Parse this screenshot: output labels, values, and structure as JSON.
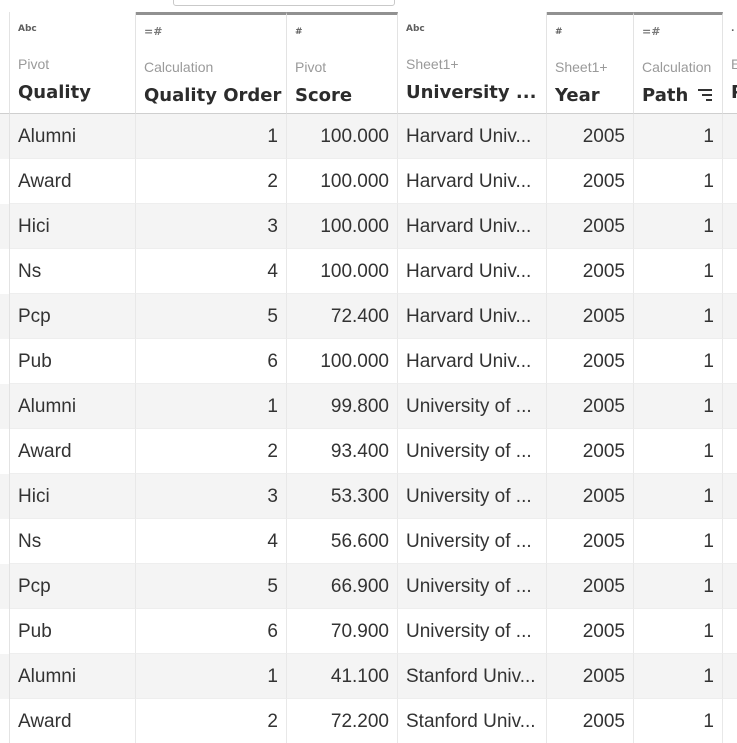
{
  "columns": [
    {
      "key": "quality",
      "icon": "Abc",
      "source": "Pivot",
      "name": "Quality",
      "align": "left"
    },
    {
      "key": "quality_order",
      "icon": "=#",
      "source": "Calculation",
      "name": "Quality Order",
      "align": "right"
    },
    {
      "key": "score",
      "icon": "#",
      "source": "Pivot",
      "name": "Score",
      "align": "right"
    },
    {
      "key": "university",
      "icon": "Abc",
      "source": "Sheet1+",
      "name": "University ...",
      "align": "left"
    },
    {
      "key": "year",
      "icon": "#",
      "source": "Sheet1+",
      "name": "Year",
      "align": "right"
    },
    {
      "key": "path",
      "icon": "=#",
      "source": "Calculation",
      "name": "Path",
      "align": "right"
    },
    {
      "key": "partial",
      "icon": ".",
      "source": "E",
      "name": "P",
      "align": "left"
    }
  ],
  "rows": [
    {
      "quality": "Alumni",
      "quality_order": "1",
      "score": "100.000",
      "university": "Harvard Univ...",
      "year": "2005",
      "path": "1"
    },
    {
      "quality": "Award",
      "quality_order": "2",
      "score": "100.000",
      "university": "Harvard Univ...",
      "year": "2005",
      "path": "1"
    },
    {
      "quality": "Hici",
      "quality_order": "3",
      "score": "100.000",
      "university": "Harvard Univ...",
      "year": "2005",
      "path": "1"
    },
    {
      "quality": "Ns",
      "quality_order": "4",
      "score": "100.000",
      "university": "Harvard Univ...",
      "year": "2005",
      "path": "1"
    },
    {
      "quality": "Pcp",
      "quality_order": "5",
      "score": "72.400",
      "university": "Harvard Univ...",
      "year": "2005",
      "path": "1"
    },
    {
      "quality": "Pub",
      "quality_order": "6",
      "score": "100.000",
      "university": "Harvard Univ...",
      "year": "2005",
      "path": "1"
    },
    {
      "quality": "Alumni",
      "quality_order": "1",
      "score": "99.800",
      "university": "University of ...",
      "year": "2005",
      "path": "1"
    },
    {
      "quality": "Award",
      "quality_order": "2",
      "score": "93.400",
      "university": "University of ...",
      "year": "2005",
      "path": "1"
    },
    {
      "quality": "Hici",
      "quality_order": "3",
      "score": "53.300",
      "university": "University of ...",
      "year": "2005",
      "path": "1"
    },
    {
      "quality": "Ns",
      "quality_order": "4",
      "score": "56.600",
      "university": "University of ...",
      "year": "2005",
      "path": "1"
    },
    {
      "quality": "Pcp",
      "quality_order": "5",
      "score": "66.900",
      "university": "University of ...",
      "year": "2005",
      "path": "1"
    },
    {
      "quality": "Pub",
      "quality_order": "6",
      "score": "70.900",
      "university": "University of ...",
      "year": "2005",
      "path": "1"
    },
    {
      "quality": "Alumni",
      "quality_order": "1",
      "score": "41.100",
      "university": "Stanford Univ...",
      "year": "2005",
      "path": "1"
    },
    {
      "quality": "Award",
      "quality_order": "2",
      "score": "72.200",
      "university": "Stanford Univ...",
      "year": "2005",
      "path": "1"
    }
  ],
  "colors": {
    "header_accent": "#919191",
    "row_stripe": "#f4f4f4",
    "text": "#333333",
    "muted": "#9a9a9a"
  }
}
